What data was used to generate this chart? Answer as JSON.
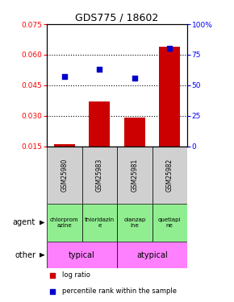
{
  "title": "GDS775 / 18602",
  "samples": [
    "GSM25980",
    "GSM25983",
    "GSM25981",
    "GSM25982"
  ],
  "log_ratio": [
    0.016,
    0.037,
    0.029,
    0.064
  ],
  "percentile_rank": [
    57,
    63,
    56,
    80
  ],
  "ylim_left": [
    0.015,
    0.075
  ],
  "ylim_right": [
    0,
    100
  ],
  "yticks_left": [
    0.015,
    0.03,
    0.045,
    0.06,
    0.075
  ],
  "yticks_right": [
    0,
    25,
    50,
    75,
    100
  ],
  "ytick_labels_right": [
    "0",
    "25",
    "50",
    "75",
    "100%"
  ],
  "agent_labels": [
    "chlorprom\nazine",
    "thioridazin\ne",
    "olanzap\nine",
    "quetiapi\nne"
  ],
  "other_labels": [
    "typical",
    "atypical"
  ],
  "bar_color": "#CC0000",
  "point_color": "#0000CC",
  "dotted_ticks": [
    0.03,
    0.045,
    0.06
  ],
  "bar_width": 0.6,
  "gray_color": "#D0D0D0",
  "green_color": "#90EE90",
  "pink_color": "#FF80FF"
}
